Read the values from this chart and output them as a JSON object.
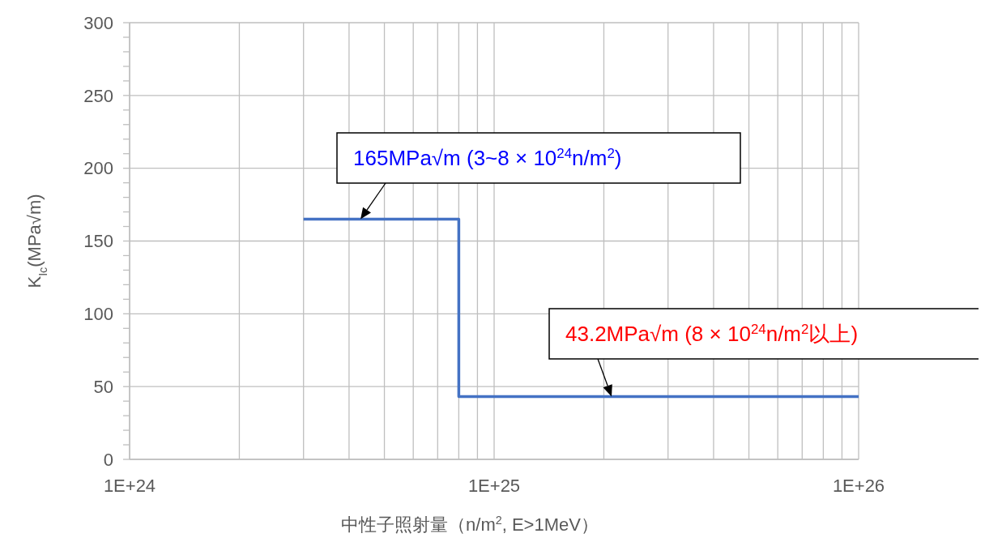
{
  "chart_data": {
    "type": "step",
    "xlabel": "中性子照射量（n/m$^{2}$, E>1MeV）",
    "ylabel": "K$_{Ic}$(MPa√m)",
    "log": "x",
    "xlim": [
      1e+24,
      1e+26
    ],
    "xticks": [
      {
        "value": 1e+24,
        "label": "1E+24"
      },
      {
        "value": 2e+24,
        "label": null
      },
      {
        "value": 3e+24,
        "label": null
      },
      {
        "value": 4e+24,
        "label": null
      },
      {
        "value": 5e+24,
        "label": null
      },
      {
        "value": 6e+24,
        "label": null
      },
      {
        "value": 7e+24,
        "label": null
      },
      {
        "value": 8e+24,
        "label": null
      },
      {
        "value": 9e+24,
        "label": null
      },
      {
        "value": 1e+25,
        "label": "1E+25"
      },
      {
        "value": 2e+25,
        "label": null
      },
      {
        "value": 3e+25,
        "label": null
      },
      {
        "value": 4e+25,
        "label": null
      },
      {
        "value": 5e+25,
        "label": null
      },
      {
        "value": 6e+25,
        "label": null
      },
      {
        "value": 7e+25,
        "label": null
      },
      {
        "value": 8e+25,
        "label": null
      },
      {
        "value": 9e+25,
        "label": null
      },
      {
        "value": 1e+26,
        "label": "1E+26"
      }
    ],
    "ylim": [
      0,
      300
    ],
    "yticks": [
      0,
      {
        "value": 10,
        "label": null
      },
      {
        "value": 20,
        "label": null
      },
      {
        "value": 30,
        "label": null
      },
      {
        "value": 40,
        "label": null
      },
      50,
      {
        "value": 60,
        "label": null
      },
      {
        "value": 70,
        "label": null
      },
      {
        "value": 80,
        "label": null
      },
      {
        "value": 90,
        "label": null
      },
      100,
      {
        "value": 110,
        "label": null
      },
      {
        "value": 120,
        "label": null
      },
      {
        "value": 130,
        "label": null
      },
      {
        "value": 140,
        "label": null
      },
      150,
      {
        "value": 160,
        "label": null
      },
      {
        "value": 170,
        "label": null
      },
      {
        "value": 180,
        "label": null
      },
      {
        "value": 190,
        "label": null
      },
      200,
      {
        "value": 210,
        "label": null
      },
      {
        "value": 220,
        "label": null
      },
      {
        "value": 230,
        "label": null
      },
      {
        "value": 240,
        "label": null
      },
      250,
      {
        "value": 260,
        "label": null
      },
      {
        "value": 270,
        "label": null
      },
      {
        "value": 280,
        "label": null
      },
      {
        "value": 290,
        "label": null
      },
      300
    ],
    "grid": true,
    "series": [
      {
        "color": "#4472c4",
        "x": [
          3e+24,
          8e+24,
          1e+26
        ],
        "values": [
          165,
          43.2,
          43.2
        ]
      }
    ],
    "annotations": [
      {
        "text": "165MPa√m (3~8 × 10$^{24}$n/m$^{2}$)",
        "x": 4.3e+24,
        "y": 165
      },
      {
        "text": "43.2MPa√m (8 × 10$^{24}$n/m$^{2}$以上)",
        "x": 2.1e+25,
        "y": 43.2
      }
    ]
  }
}
